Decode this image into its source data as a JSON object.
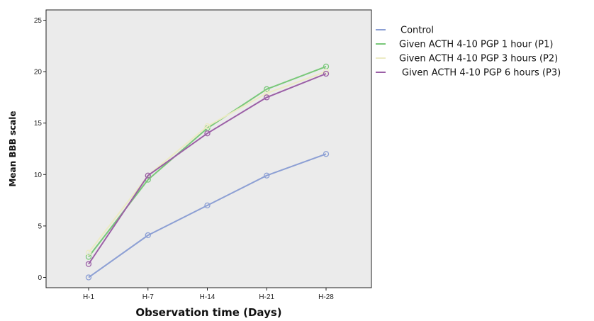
{
  "chart_data": {
    "type": "line",
    "title": "",
    "xlabel": "Observation time (Days)",
    "ylabel": "Mean BBB scale",
    "categories": [
      "H-1",
      "H-7",
      "H-14",
      "H-21",
      "H-28"
    ],
    "ylim": [
      -1,
      26
    ],
    "yticks": [
      0,
      5,
      10,
      15,
      20,
      25
    ],
    "grid": false,
    "legend_position": "right",
    "series": [
      {
        "name": "Control",
        "color": "#8c9fd4",
        "values": [
          0.0,
          4.1,
          7.0,
          9.9,
          12.0
        ]
      },
      {
        "name": "Given ACTH 4-10 PGP 1 hour (P1)",
        "color": "#79c879",
        "values": [
          2.0,
          9.5,
          14.5,
          18.3,
          20.5
        ]
      },
      {
        "name": "Given ACTH 4-10 PGP 3 hours (P2)",
        "color": "#ecebc4",
        "values": [
          2.4,
          9.9,
          14.7,
          17.9,
          20.0
        ]
      },
      {
        "name": "Given ACTH 4-10 PGP 6 hours (P3)",
        "color": "#9b5fa6",
        "values": [
          1.3,
          9.9,
          14.0,
          17.5,
          19.8
        ]
      }
    ]
  }
}
